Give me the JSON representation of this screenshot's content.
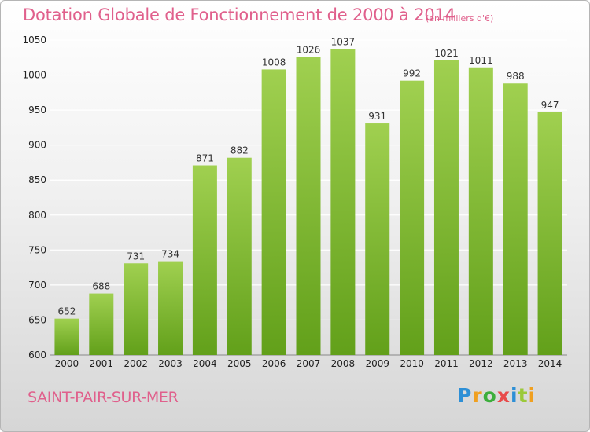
{
  "chart_data": {
    "type": "bar",
    "title": "Dotation Globale de Fonctionnement de 2000 à 2014",
    "subtitle": "(en milliers d'€)",
    "xlabel": "",
    "ylabel": "",
    "categories": [
      "2000",
      "2001",
      "2002",
      "2003",
      "2004",
      "2005",
      "2006",
      "2007",
      "2008",
      "2009",
      "2010",
      "2011",
      "2012",
      "2013",
      "2014"
    ],
    "values": [
      652,
      688,
      731,
      734,
      871,
      882,
      1008,
      1026,
      1037,
      931,
      992,
      1021,
      1011,
      988,
      947
    ],
    "ylim": [
      600,
      1050
    ],
    "yticks": [
      600,
      650,
      700,
      750,
      800,
      850,
      900,
      950,
      1000,
      1050
    ],
    "grid": true,
    "legend": "none"
  },
  "footer": {
    "location": "SAINT-PAIR-SUR-MER",
    "logo": "Proxiti"
  },
  "colors": {
    "title": "#e0608c",
    "bar_top": "#a0d050",
    "bar_bottom": "#62a01a",
    "grid": "#ffffff"
  }
}
